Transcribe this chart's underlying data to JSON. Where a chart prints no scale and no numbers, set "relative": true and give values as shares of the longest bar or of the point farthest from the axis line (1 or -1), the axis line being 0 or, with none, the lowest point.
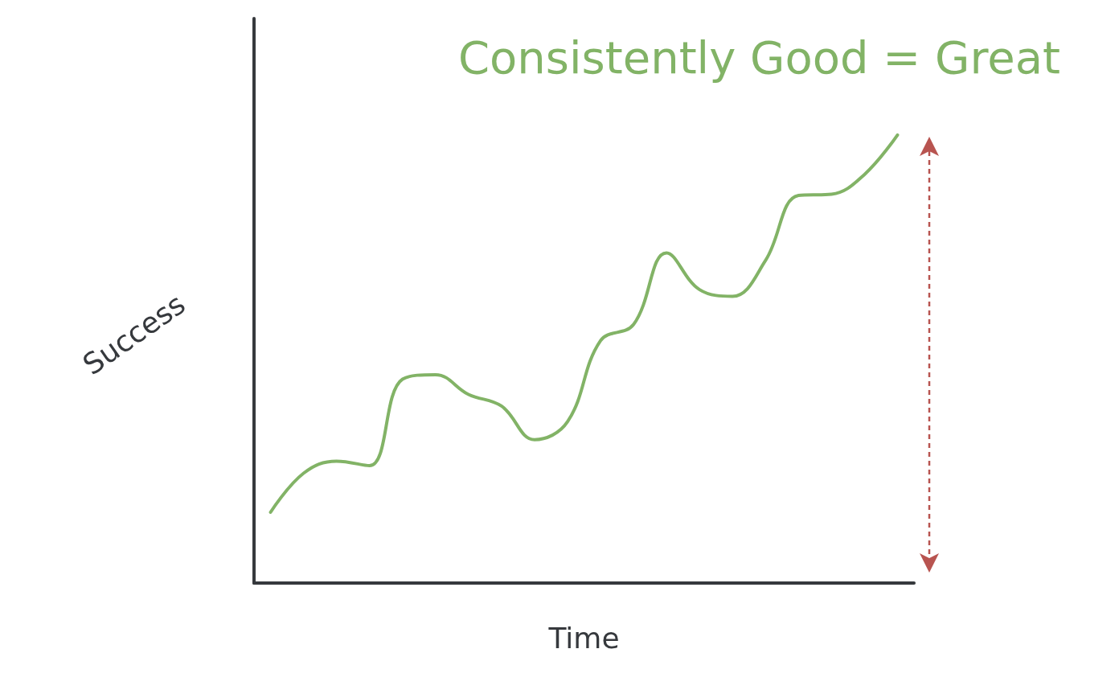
{
  "chart_data": {
    "type": "line",
    "relative": true,
    "title": "Consistently Good = Great",
    "xlabel": "Time",
    "ylabel": "Success",
    "categories": [
      null,
      null,
      null,
      null,
      null,
      null,
      null,
      null,
      null,
      null,
      null,
      null,
      null,
      null,
      null,
      null,
      null,
      null,
      null,
      null
    ],
    "series": [
      {
        "color": "#82b366",
        "values": [
          0.158,
          0.245,
          0.272,
          0.262,
          0.455,
          0.465,
          0.421,
          0.395,
          0.32,
          0.36,
          0.541,
          0.577,
          0.737,
          0.655,
          0.64,
          0.72,
          0.865,
          0.868,
          0.912,
          1
        ]
      }
    ],
    "marker": "none",
    "line_style": "solid",
    "grid": false
  }
}
